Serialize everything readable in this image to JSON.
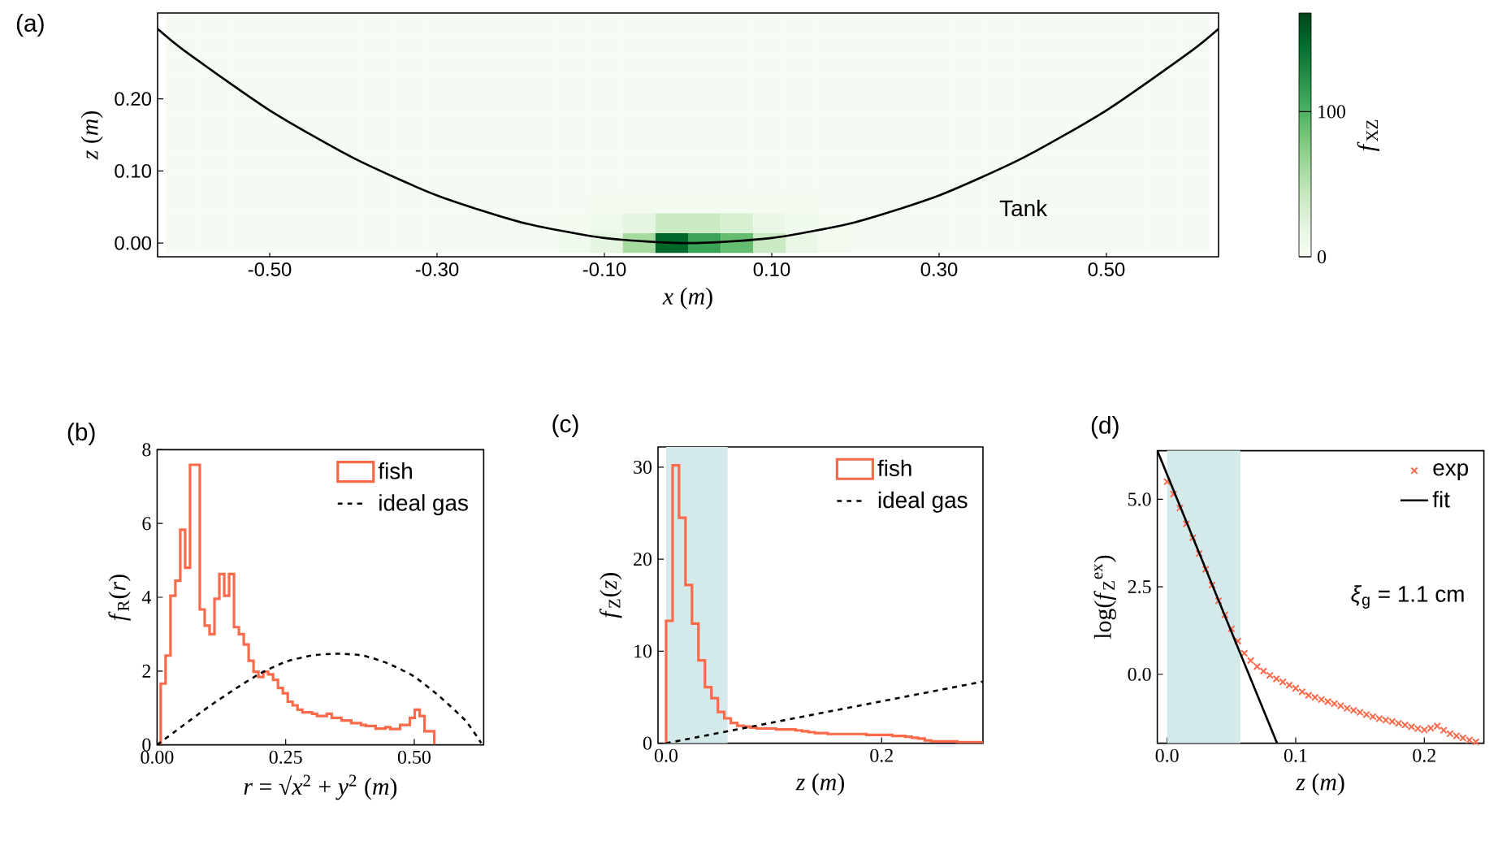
{
  "chart_data": [
    {
      "type": "heatmap",
      "title": "(a)",
      "xlabel": "*x* (*m*)",
      "ylabel": "*z* (*m*)",
      "clabel": "*f*$_{XZ}$",
      "x": [
        -0.6045,
        -0.5655,
        -0.5265,
        -0.4875,
        -0.4485,
        -0.4095,
        -0.3705,
        -0.3315,
        -0.2925,
        -0.2535,
        -0.2145,
        -0.1755,
        -0.1365,
        -0.0975,
        -0.0585,
        -0.0195,
        0.0195,
        0.0585,
        0.0975,
        0.1365,
        0.1755,
        0.2145,
        0.2535,
        0.2925,
        0.3315,
        0.3705,
        0.4095,
        0.4485,
        0.4875,
        0.5265,
        0.5655,
        0.6045
      ],
      "y": [
        0.3025,
        0.275,
        0.2475,
        0.22,
        0.1925,
        0.165,
        0.1375,
        0.11,
        0.0825,
        0.055,
        0.0275,
        0
      ],
      "cells": [
        [
          2,
          2,
          2,
          2,
          2,
          2,
          2,
          2,
          2,
          2,
          2,
          2,
          2,
          2,
          2,
          2,
          2,
          2,
          2,
          2,
          2,
          2,
          2,
          2,
          2,
          2,
          2,
          2,
          2,
          2,
          2,
          2
        ],
        [
          2,
          2,
          2,
          2,
          2,
          2,
          2,
          2,
          2,
          2,
          2,
          2,
          2,
          2,
          2,
          2,
          2,
          2,
          2,
          2,
          2,
          2,
          2,
          2,
          2,
          2,
          2,
          2,
          2,
          2,
          2,
          2
        ],
        [
          2,
          2,
          2,
          2,
          2,
          2,
          2,
          2,
          2,
          2,
          2,
          2,
          2,
          2,
          2,
          2,
          2,
          2,
          2,
          2,
          2,
          2,
          2,
          2,
          2,
          2,
          2,
          2,
          2,
          2,
          2,
          2
        ],
        [
          2,
          2,
          2,
          2,
          2,
          2,
          2,
          2,
          2,
          2,
          2,
          2,
          2,
          2,
          2,
          2,
          2,
          2,
          2,
          2,
          2,
          2,
          2,
          2,
          2,
          2,
          2,
          2,
          2,
          2,
          2,
          2
        ],
        [
          2,
          2,
          2,
          2,
          2,
          2,
          2,
          2,
          2,
          2,
          2,
          2,
          2,
          2,
          2,
          2,
          2,
          2,
          2,
          2,
          2,
          2,
          2,
          2,
          2,
          2,
          2,
          2,
          2,
          2,
          2,
          2
        ],
        [
          2,
          2,
          2,
          2,
          2,
          2,
          2,
          2,
          2,
          2,
          2,
          2,
          2,
          2,
          2,
          2,
          2,
          2,
          2,
          2,
          2,
          2,
          2,
          2,
          2,
          2,
          2,
          2,
          2,
          2,
          2,
          2
        ],
        [
          2,
          2,
          2,
          2,
          2,
          2,
          2,
          2,
          2,
          2,
          2,
          2,
          2,
          2,
          2,
          2,
          2,
          2,
          2,
          2,
          2,
          2,
          2,
          2,
          2,
          2,
          2,
          2,
          2,
          2,
          2,
          2
        ],
        [
          2,
          2,
          2,
          2,
          2,
          2,
          2,
          2,
          2,
          2,
          2,
          2,
          2,
          2,
          2,
          2,
          2,
          2,
          2,
          2,
          2,
          2,
          2,
          2,
          2,
          2,
          2,
          2,
          2,
          2,
          2,
          2
        ],
        [
          2,
          2,
          2,
          2,
          2,
          2,
          2,
          2,
          2,
          2,
          2,
          2,
          2,
          2,
          2,
          2,
          2,
          2,
          2,
          2,
          2,
          2,
          2,
          2,
          2,
          2,
          2,
          2,
          2,
          2,
          2,
          2
        ],
        [
          2,
          2,
          2,
          2,
          2,
          2,
          2,
          2,
          2,
          2,
          2,
          2,
          2,
          5,
          5,
          5,
          5,
          5,
          5,
          5,
          2,
          2,
          2,
          2,
          2,
          2,
          2,
          2,
          2,
          2,
          2,
          2
        ],
        [
          2,
          2,
          2,
          2,
          2,
          2,
          2,
          2,
          2,
          2,
          2,
          2,
          4,
          10,
          20,
          40,
          40,
          30,
          15,
          8,
          4,
          2,
          2,
          2,
          2,
          2,
          2,
          2,
          2,
          2,
          2,
          2
        ],
        [
          2,
          2,
          2,
          2,
          2,
          2,
          2,
          2,
          2,
          2,
          2,
          2,
          8,
          20,
          60,
          150,
          110,
          90,
          40,
          15,
          6,
          2,
          2,
          2,
          2,
          2,
          2,
          2,
          2,
          2,
          2,
          2
        ]
      ],
      "clim": [
        0,
        168
      ],
      "cticks": [
        0,
        100
      ],
      "xlim": [
        -0.634,
        0.634
      ],
      "ylim": [
        -0.019,
        0.319
      ],
      "xticks": [
        {
          "value": -0.5,
          "label": "-0.50"
        },
        {
          "value": -0.3,
          "label": "-0.30"
        },
        {
          "value": -0.1,
          "label": "-0.10"
        },
        {
          "value": 0.1,
          "label": "0.10"
        },
        {
          "value": 0.3,
          "label": "0.30"
        },
        {
          "value": 0.5,
          "label": "0.50"
        }
      ],
      "yticks": [
        {
          "value": 0,
          "label": "0.00"
        },
        {
          "value": 0.1,
          "label": "0.10"
        },
        {
          "value": 0.2,
          "label": "0.20"
        }
      ],
      "series": [
        {
          "type": "line",
          "color": "#000000",
          "x": [
            -0.634,
            -0.6,
            -0.5,
            -0.4,
            -0.3,
            -0.2,
            -0.1,
            0,
            0.1,
            0.2,
            0.3,
            0.4,
            0.5,
            0.6,
            0.634
          ],
          "values": [
            0.297,
            0.265,
            0.184,
            0.118,
            0.066,
            0.029,
            0.007,
            0,
            0.007,
            0.029,
            0.066,
            0.118,
            0.184,
            0.265,
            0.297
          ]
        }
      ],
      "annotations": [
        "Tank"
      ]
    },
    {
      "type": "histogram",
      "title": "(b)",
      "xlabel": "*r* = √*x*$^{2}$ + *y*$^{2}$ (*m*)",
      "ylabel": "*f*$_{R}$(*r*)",
      "xlim": [
        0,
        0.635
      ],
      "ylim": [
        0,
        8
      ],
      "xticks": [
        {
          "value": 0,
          "label": "0.00"
        },
        {
          "value": 0.25,
          "label": "0.25"
        },
        {
          "value": 0.5,
          "label": "0.50"
        }
      ],
      "yticks": [
        0,
        2,
        4,
        6,
        8
      ],
      "legend": "top right",
      "series": [
        {
          "name": "fish",
          "color": "#fb6a4a",
          "bins": [
            0.007,
            0.0165,
            0.026,
            0.0355,
            0.045,
            0.0545,
            0.064,
            0.0735,
            0.083,
            0.0925,
            0.102,
            0.1115,
            0.121,
            0.1305,
            0.14,
            0.1495,
            0.159,
            0.1685,
            0.178,
            0.1875,
            0.197,
            0.2065,
            0.216,
            0.2255,
            0.235,
            0.2445,
            0.254,
            0.2635,
            0.273,
            0.2825,
            0.292,
            0.3015,
            0.311,
            0.3205,
            0.33,
            0.3395,
            0.349,
            0.3585,
            0.368,
            0.3775,
            0.387,
            0.3965,
            0.406,
            0.4155,
            0.425,
            0.4345,
            0.444,
            0.4535,
            0.463,
            0.4725,
            0.482,
            0.4915,
            0.501,
            0.5105,
            0.52,
            0.5295,
            0.539
          ],
          "values": [
            1.66,
            2.42,
            4.04,
            4.45,
            5.83,
            4.8,
            7.59,
            7.59,
            3.67,
            3.23,
            3.0,
            3.96,
            4.63,
            4.04,
            4.63,
            3.19,
            3.0,
            2.72,
            2.28,
            1.98,
            1.84,
            1.98,
            1.91,
            1.76,
            1.54,
            1.4,
            1.17,
            1.07,
            0.95,
            0.88,
            0.88,
            0.84,
            0.78,
            0.78,
            0.84,
            0.73,
            0.73,
            0.66,
            0.66,
            0.59,
            0.59,
            0.54,
            0.51,
            0.51,
            0.44,
            0.44,
            0.48,
            0.43,
            0.43,
            0.54,
            0.54,
            0.73,
            0.95,
            0.78,
            0.37,
            0.37
          ]
        },
        {
          "name": "ideal gas",
          "type": "line",
          "line_style": "dashed",
          "color": "#000000",
          "x": [
            0,
            0.05,
            0.1,
            0.15,
            0.2,
            0.25,
            0.3,
            0.35,
            0.4,
            0.45,
            0.5,
            0.55,
            0.6,
            0.63
          ],
          "values": [
            0,
            0.52,
            1.03,
            1.5,
            1.93,
            2.25,
            2.42,
            2.47,
            2.42,
            2.2,
            1.85,
            1.3,
            0.65,
            0.05
          ]
        }
      ]
    },
    {
      "type": "histogram",
      "title": "(c)",
      "xlabel": "*z* (*m*)",
      "ylabel": "*f*$_{Z}$(*z*)",
      "xlim": [
        -0.0075,
        0.294
      ],
      "ylim": [
        0,
        32.2
      ],
      "xticks": [
        {
          "value": 0,
          "label": "0.0"
        },
        {
          "value": 0.2,
          "label": "0.2"
        }
      ],
      "yticks": [
        0,
        10,
        20,
        30
      ],
      "legend": "top right",
      "bands": [
        {
          "axis": "x",
          "from": 0,
          "to": 0.057,
          "color": "#d4e9e9"
        }
      ],
      "series": [
        {
          "name": "fish",
          "color": "#fb6a4a",
          "bins": [
            0,
            0.006,
            0.012,
            0.018,
            0.024,
            0.03,
            0.036,
            0.042,
            0.048,
            0.054,
            0.06,
            0.066,
            0.072,
            0.078,
            0.084,
            0.09,
            0.096,
            0.102,
            0.108,
            0.114,
            0.12,
            0.126,
            0.132,
            0.138,
            0.144,
            0.15,
            0.156,
            0.162,
            0.168,
            0.174,
            0.18,
            0.186,
            0.192,
            0.198,
            0.204,
            0.21,
            0.216,
            0.222,
            0.228,
            0.234,
            0.24,
            0.246,
            0.252,
            0.258,
            0.264,
            0.27,
            0.276,
            0.282,
            0.288,
            0.294
          ],
          "values": [
            13.3,
            30.2,
            24.5,
            17.2,
            13.0,
            9.0,
            6.1,
            4.9,
            3.4,
            2.7,
            2.2,
            1.9,
            1.8,
            1.7,
            1.6,
            1.6,
            1.6,
            1.5,
            1.5,
            1.5,
            1.4,
            1.3,
            1.2,
            1.1,
            1.1,
            1.0,
            1.0,
            1.0,
            1.0,
            1.0,
            1.0,
            0.9,
            0.9,
            0.9,
            0.9,
            0.8,
            0.8,
            0.7,
            0.6,
            0.5,
            0.3,
            0.2,
            0.2,
            0.2,
            0.2,
            0.1,
            0.1,
            0.1,
            0.1
          ]
        },
        {
          "name": "ideal gas",
          "type": "line",
          "line_style": "dashed",
          "color": "#000000",
          "x": [
            0,
            0.294
          ],
          "values": [
            0,
            6.7
          ]
        }
      ]
    },
    {
      "type": "scatter",
      "title": "(d)",
      "xlabel": "*z* (*m*)",
      "ylabel": "log(*f*$_{Z}$$^{ex}$)",
      "xlim": [
        -0.0076,
        0.2463
      ],
      "ylim": [
        -1.97,
        6.39
      ],
      "xticks": [
        {
          "value": 0,
          "label": "0.0"
        },
        {
          "value": 0.1,
          "label": "0.1"
        },
        {
          "value": 0.2,
          "label": "0.2"
        }
      ],
      "yticks": [
        {
          "value": 0,
          "label": "0.0"
        },
        2.5,
        {
          "value": 5,
          "label": "5.0"
        }
      ],
      "legend": "top right",
      "bands": [
        {
          "axis": "x",
          "from": 0,
          "to": 0.057,
          "color": "#d4e9e9"
        }
      ],
      "annotations": [
        "*ξ*$_{g}$ = 1.1 cm"
      ],
      "series": [
        {
          "name": "exp",
          "color": "#fb6a4a",
          "marker": "cross",
          "x": [
            0,
            0.005,
            0.01,
            0.015,
            0.02,
            0.025,
            0.03,
            0.035,
            0.04,
            0.045,
            0.05,
            0.055,
            0.06,
            0.065,
            0.07,
            0.075,
            0.08,
            0.085,
            0.09,
            0.095,
            0.1,
            0.105,
            0.11,
            0.115,
            0.12,
            0.125,
            0.13,
            0.135,
            0.14,
            0.145,
            0.15,
            0.155,
            0.16,
            0.165,
            0.17,
            0.175,
            0.18,
            0.185,
            0.19,
            0.195,
            0.2,
            0.205,
            0.21,
            0.215,
            0.22,
            0.225,
            0.23,
            0.235,
            0.24
          ],
          "values": [
            5.5,
            5.15,
            4.75,
            4.3,
            3.9,
            3.45,
            3.0,
            2.55,
            2.1,
            1.7,
            1.3,
            0.95,
            0.6,
            0.39,
            0.22,
            0.09,
            -0.03,
            -0.13,
            -0.22,
            -0.31,
            -0.4,
            -0.5,
            -0.6,
            -0.66,
            -0.72,
            -0.78,
            -0.84,
            -0.9,
            -0.97,
            -1.03,
            -1.09,
            -1.15,
            -1.21,
            -1.27,
            -1.31,
            -1.35,
            -1.4,
            -1.45,
            -1.5,
            -1.55,
            -1.59,
            -1.54,
            -1.48,
            -1.6,
            -1.7,
            -1.76,
            -1.82,
            -1.88,
            -1.93
          ]
        },
        {
          "name": "fit",
          "type": "line",
          "color": "#000000",
          "x": [
            -0.0076,
            0.0855
          ],
          "values": [
            6.39,
            -1.97
          ]
        }
      ]
    }
  ]
}
